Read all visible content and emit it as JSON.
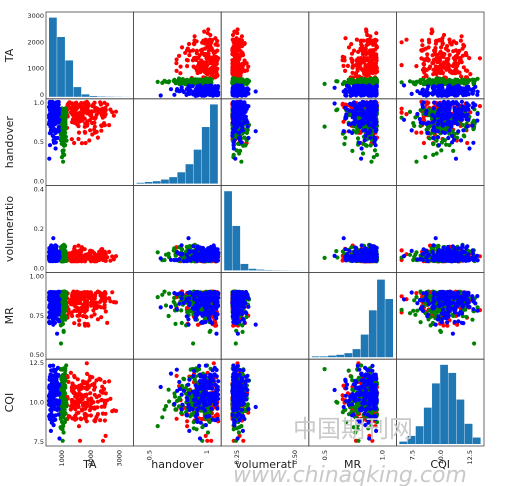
{
  "chart_data": {
    "type": "scatter-matrix",
    "variables": [
      "TA",
      "handover",
      "volumeratio",
      "MR",
      "CQI"
    ],
    "axis_labels": {
      "TA": "TA",
      "handover": "handover",
      "volumeratio_y": "volumeratio",
      "volumeratio_x": "volumerati",
      "MR_y": "MR",
      "MR_x": "MR",
      "CQI_y": "CQI",
      "CQI_x": "CQI"
    },
    "ranges": {
      "TA": [
        0,
        3000
      ],
      "handover": [
        0,
        1.0
      ],
      "volumeratio": [
        0,
        0.6
      ],
      "MR": [
        0.4,
        1.0
      ],
      "CQI": [
        7,
        14.5
      ]
    },
    "y_ticks": {
      "TA": [
        "3000",
        "2000",
        "1000",
        "0"
      ],
      "handover": [
        "1.0",
        "0.5",
        "0.0"
      ],
      "volumeratio": [
        "0.4",
        "0.2",
        "0.0"
      ],
      "MR": [
        "1.00",
        "0.75",
        "0.50"
      ],
      "CQI": [
        "12.5",
        "10.0",
        "7.5"
      ]
    },
    "x_ticks": {
      "TA": [
        "1000",
        "2000",
        "3000"
      ],
      "handover": [
        "0.5",
        "1"
      ],
      "volumeratio": [
        "0.25",
        "0.50"
      ],
      "MR": [
        "0.5",
        "1.0"
      ],
      "CQI": [
        "7.5",
        "10.0",
        "12.5"
      ]
    },
    "series": [
      {
        "color": "#ff0000",
        "ta_range": [
          650,
          2500
        ]
      },
      {
        "color": "#008000",
        "ta_range": [
          420,
          650
        ]
      },
      {
        "color": "#0000ff",
        "ta_range": [
          0,
          420
        ]
      }
    ],
    "histograms": {
      "TA": [
        0.98,
        0.74,
        0.45,
        0.12,
        0.03,
        0.01,
        0.005,
        0.003,
        0.002,
        0.001
      ],
      "handover": [
        0.01,
        0.02,
        0.03,
        0.05,
        0.08,
        0.14,
        0.24,
        0.42,
        0.7,
        0.98
      ],
      "volumeratio": [
        0.98,
        0.55,
        0.08,
        0.02,
        0.01,
        0.005,
        0.003,
        0.002,
        0.001,
        0.001
      ],
      "MR": [
        0.01,
        0.01,
        0.02,
        0.03,
        0.05,
        0.1,
        0.28,
        0.58,
        0.96,
        0.72
      ],
      "CQI": [
        0.03,
        0.1,
        0.22,
        0.45,
        0.75,
        0.98,
        0.88,
        0.55,
        0.25,
        0.08
      ]
    },
    "hist_color": "#1f77b4"
  },
  "watermark": {
    "chinese": "中国期刊网",
    "url": "www.chinaqking.com"
  }
}
